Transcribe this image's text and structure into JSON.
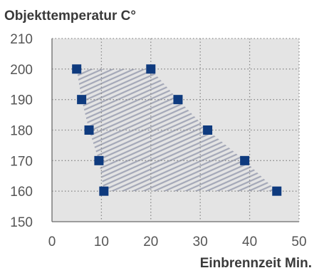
{
  "chart_data": {
    "type": "scatter",
    "title": "",
    "ylabel": "Objekttemperatur C°",
    "xlabel": "Einbrennzeit Min.",
    "xlim": [
      0,
      50
    ],
    "ylim": [
      150,
      210
    ],
    "xticks": [
      0,
      10,
      20,
      30,
      40,
      50
    ],
    "yticks": [
      150,
      160,
      170,
      180,
      190,
      200,
      210
    ],
    "grid": true,
    "series": [
      {
        "color": "#0e3a7e",
        "points": [
          {
            "x": 5,
            "y": 200
          },
          {
            "x": 6,
            "y": 190
          },
          {
            "x": 7.5,
            "y": 180
          },
          {
            "x": 9.5,
            "y": 170
          },
          {
            "x": 10.5,
            "y": 160
          },
          {
            "x": 20,
            "y": 200
          },
          {
            "x": 25.5,
            "y": 190
          },
          {
            "x": 31.5,
            "y": 180
          },
          {
            "x": 39,
            "y": 170
          },
          {
            "x": 45.5,
            "y": 160
          }
        ]
      }
    ],
    "region": {
      "fill": "hatched",
      "polygon": [
        {
          "x": 5,
          "y": 200
        },
        {
          "x": 20,
          "y": 200
        },
        {
          "x": 25.5,
          "y": 190
        },
        {
          "x": 31.5,
          "y": 180
        },
        {
          "x": 39,
          "y": 170
        },
        {
          "x": 45.5,
          "y": 160
        },
        {
          "x": 10.5,
          "y": 160
        },
        {
          "x": 9.5,
          "y": 170
        },
        {
          "x": 7.5,
          "y": 180
        },
        {
          "x": 6,
          "y": 190
        }
      ]
    },
    "colors": {
      "plot_background": "#e4e4e4",
      "marker": "#0e3a7e",
      "hatch": "#a4a8b8",
      "grid": "#8a8a8a",
      "axis": "#6a6a6a"
    }
  }
}
